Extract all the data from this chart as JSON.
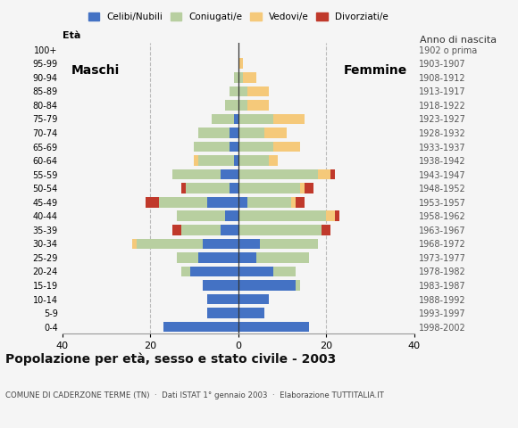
{
  "age_groups": [
    "0-4",
    "5-9",
    "10-14",
    "15-19",
    "20-24",
    "25-29",
    "30-34",
    "35-39",
    "40-44",
    "45-49",
    "50-54",
    "55-59",
    "60-64",
    "65-69",
    "70-74",
    "75-79",
    "80-84",
    "85-89",
    "90-94",
    "95-99",
    "100+"
  ],
  "birth_years": [
    "1998-2002",
    "1993-1997",
    "1988-1992",
    "1983-1987",
    "1978-1982",
    "1973-1977",
    "1968-1972",
    "1963-1967",
    "1958-1962",
    "1953-1957",
    "1948-1952",
    "1943-1947",
    "1938-1942",
    "1933-1937",
    "1928-1932",
    "1923-1927",
    "1918-1922",
    "1913-1917",
    "1908-1912",
    "1903-1907",
    "1902 o prima"
  ],
  "male": {
    "celibe": [
      17,
      7,
      7,
      8,
      11,
      9,
      8,
      4,
      3,
      7,
      2,
      4,
      1,
      2,
      2,
      1,
      0,
      0,
      0,
      0,
      0
    ],
    "coniugato": [
      0,
      0,
      0,
      0,
      2,
      5,
      15,
      9,
      11,
      11,
      10,
      11,
      8,
      8,
      7,
      5,
      3,
      2,
      1,
      0,
      0
    ],
    "vedovo": [
      0,
      0,
      0,
      0,
      0,
      0,
      1,
      0,
      0,
      0,
      0,
      0,
      1,
      0,
      0,
      0,
      0,
      0,
      0,
      0,
      0
    ],
    "divorziato": [
      0,
      0,
      0,
      0,
      0,
      0,
      0,
      2,
      0,
      3,
      1,
      0,
      0,
      0,
      0,
      0,
      0,
      0,
      0,
      0,
      0
    ]
  },
  "female": {
    "nubile": [
      16,
      6,
      7,
      13,
      8,
      4,
      5,
      0,
      0,
      2,
      0,
      0,
      0,
      0,
      0,
      0,
      0,
      0,
      0,
      0,
      0
    ],
    "coniugata": [
      0,
      0,
      0,
      1,
      5,
      12,
      13,
      19,
      20,
      10,
      14,
      18,
      7,
      8,
      6,
      8,
      2,
      2,
      1,
      0,
      0
    ],
    "vedova": [
      0,
      0,
      0,
      0,
      0,
      0,
      0,
      0,
      2,
      1,
      1,
      3,
      2,
      6,
      5,
      7,
      5,
      5,
      3,
      1,
      0
    ],
    "divorziata": [
      0,
      0,
      0,
      0,
      0,
      0,
      0,
      2,
      1,
      2,
      2,
      1,
      0,
      0,
      0,
      0,
      0,
      0,
      0,
      0,
      0
    ]
  },
  "colors": {
    "celibe": "#4472c4",
    "coniugato": "#b8cfa0",
    "vedovo": "#f5c97a",
    "divorziato": "#c0392b"
  },
  "legend_labels": [
    "Celibi/Nubili",
    "Coniugati/e",
    "Vedovi/e",
    "Divorziati/e"
  ],
  "title": "Popolazione per età, sesso e stato civile - 2003",
  "subtitle": "COMUNE DI CADERZONE TERME (TN)  ·  Dati ISTAT 1° gennaio 2003  ·  Elaborazione TUTTITALIA.IT",
  "xlabel_left": "Maschi",
  "xlabel_right": "Femmine",
  "ylabel_left": "Età",
  "ylabel_right": "Anno di nascita",
  "xlim": 40,
  "bg_color": "#f5f5f5",
  "grid_color": "#bbbbbb"
}
